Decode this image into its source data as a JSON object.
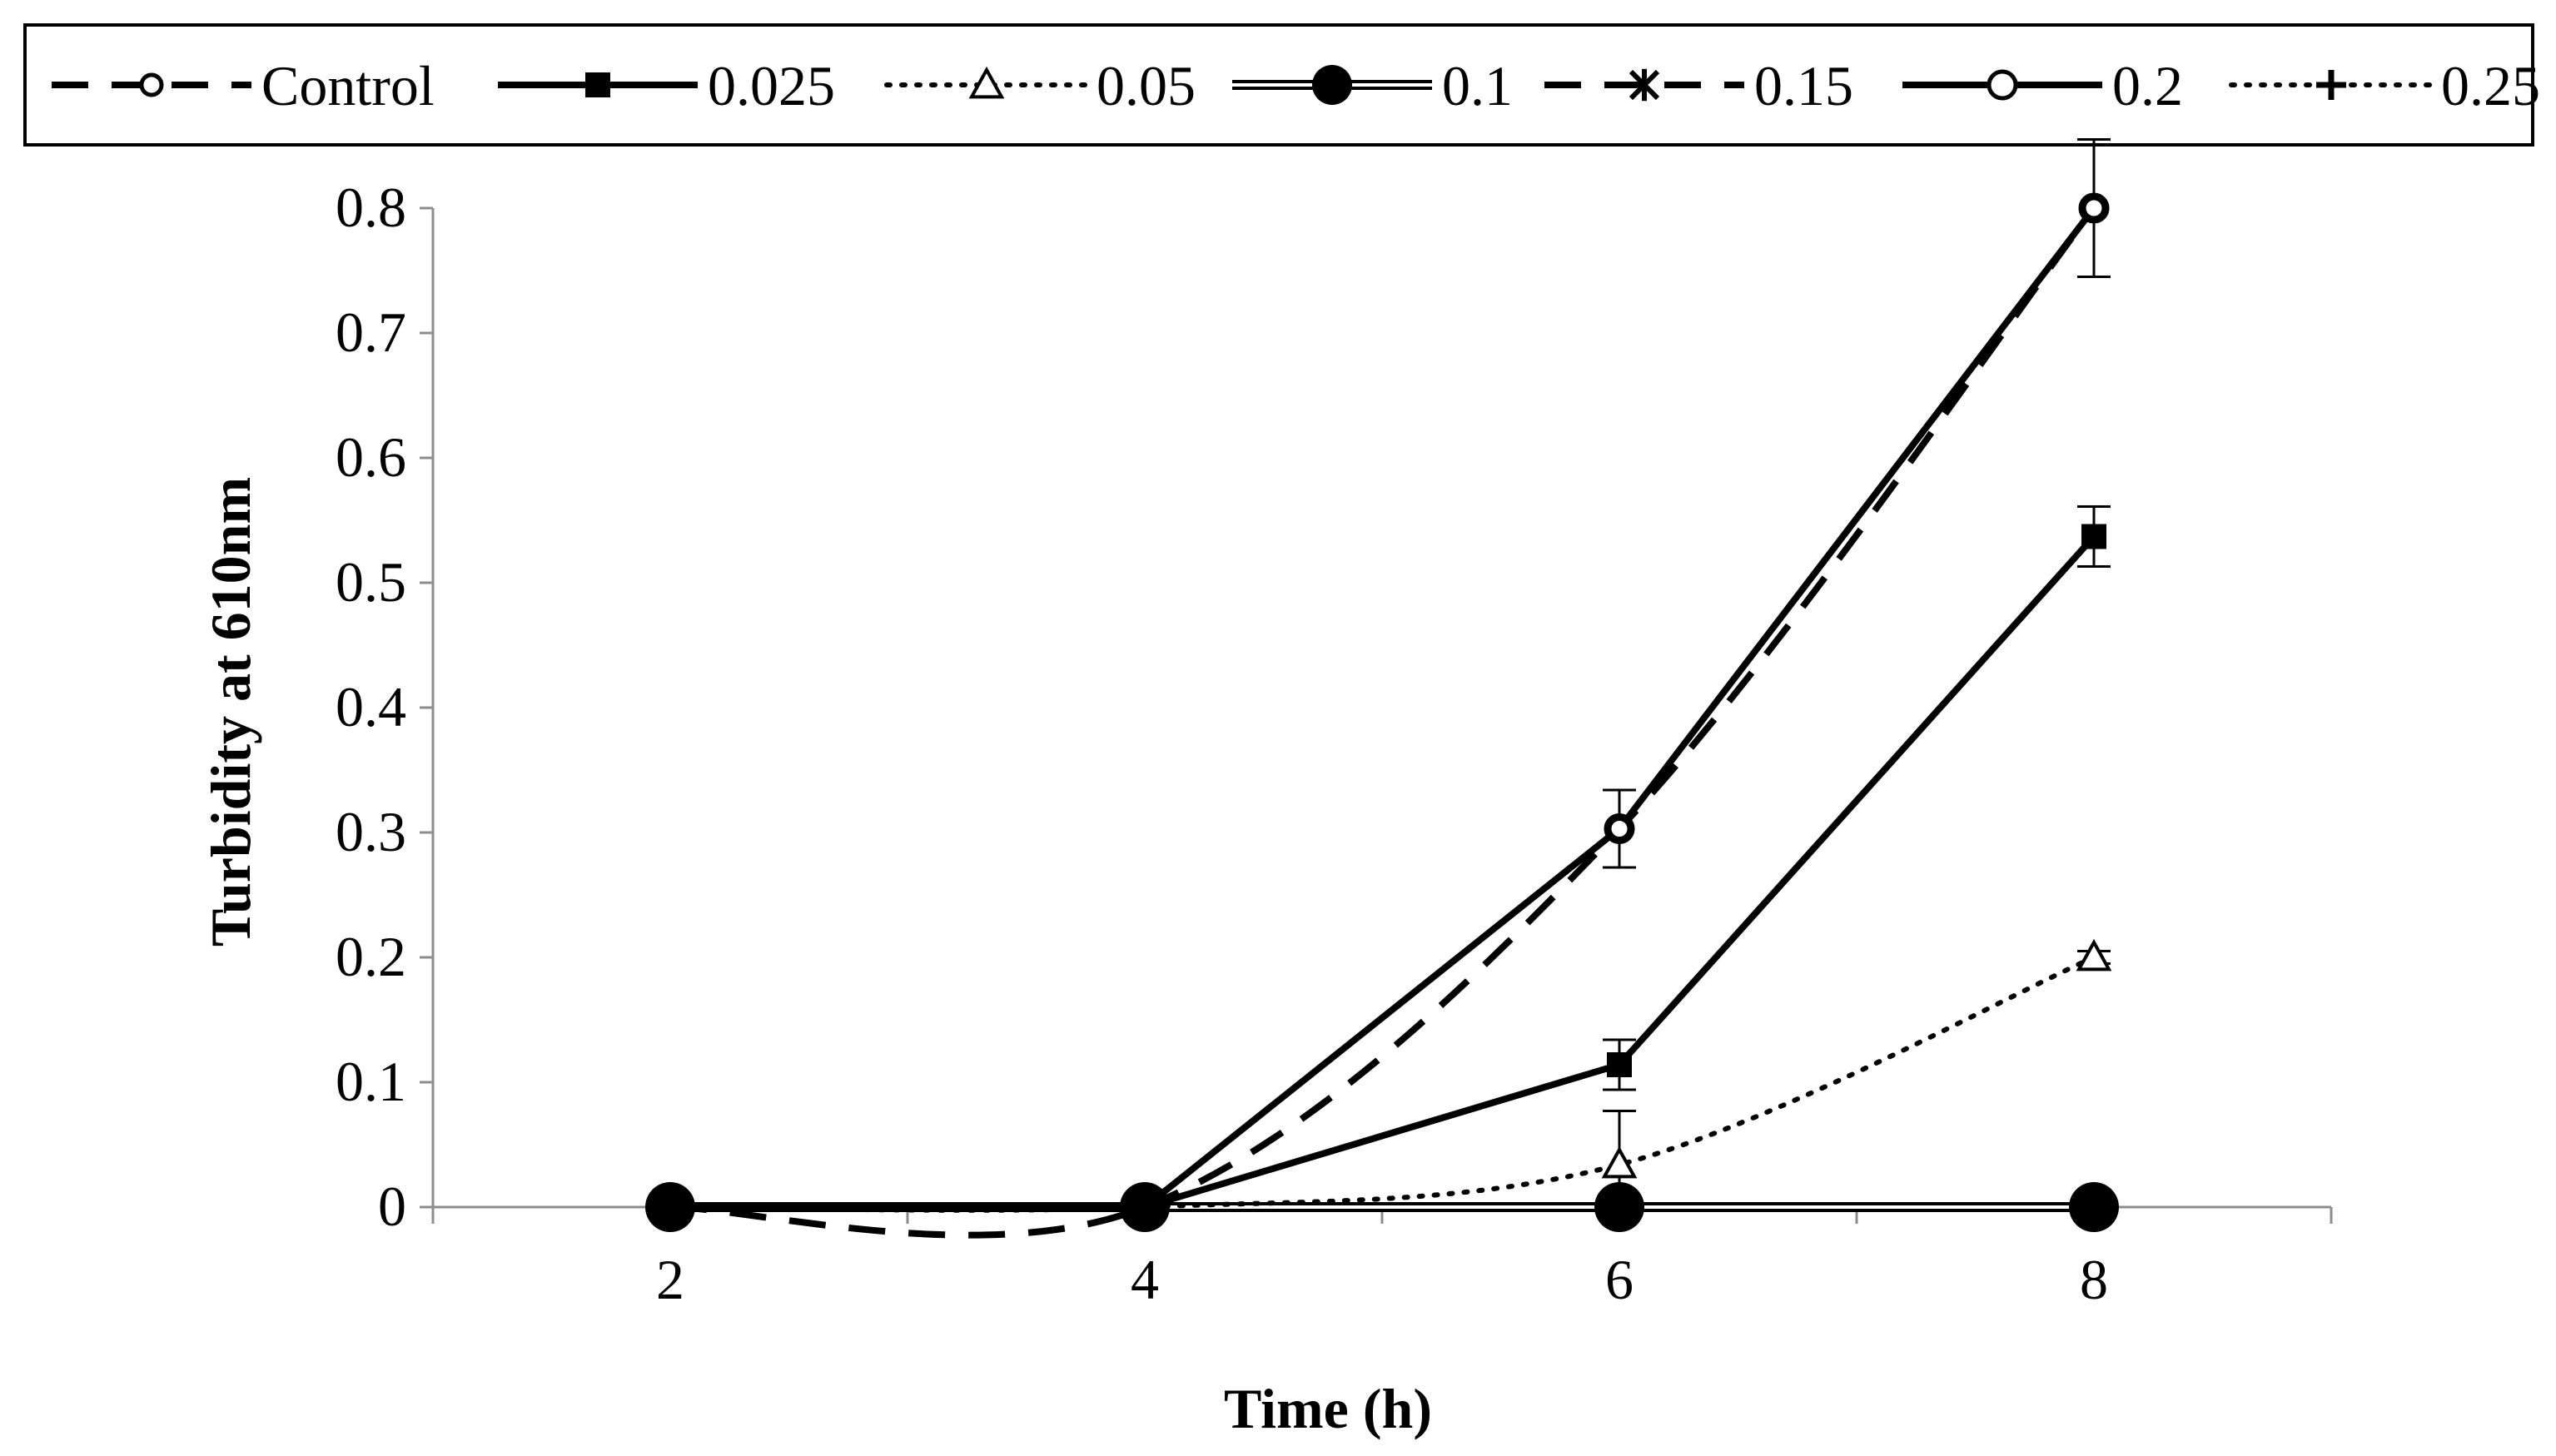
{
  "chart_data": {
    "type": "line",
    "title": "",
    "xlabel": "Time (h)",
    "ylabel": "Turbidity at 610nm",
    "x": [
      2,
      4,
      6,
      8
    ],
    "x_ticks": [
      "2",
      "4",
      "6",
      "8"
    ],
    "xlim": [
      1,
      9
    ],
    "ylim": [
      0,
      0.8
    ],
    "y_ticks": [
      "0",
      "0.1",
      "0.2",
      "0.3",
      "0.4",
      "0.5",
      "0.6",
      "0.7",
      "0.8"
    ],
    "grid": false,
    "legend_position": "top",
    "series": [
      {
        "name": "Control",
        "values": [
          0,
          0,
          0.303,
          0.8
        ],
        "errors": [
          0,
          0,
          0.031,
          0.055
        ],
        "line": "dashed",
        "marker": "open-circle-small",
        "smooth": true
      },
      {
        "name": "0.025",
        "values": [
          0,
          0,
          0.114,
          0.537
        ],
        "errors": [
          0,
          0,
          0.02,
          0.024
        ],
        "line": "solid",
        "marker": "filled-square",
        "smooth": false
      },
      {
        "name": "0.05",
        "values": [
          0,
          0,
          0.034,
          0.2
        ],
        "errors": [
          0,
          0,
          0.043,
          0.005
        ],
        "line": "dotted",
        "marker": "open-triangle",
        "smooth": true
      },
      {
        "name": "0.1",
        "values": [
          0,
          0,
          0,
          0
        ],
        "errors": [
          0,
          0,
          0,
          0
        ],
        "line": "double",
        "marker": "filled-circle",
        "smooth": false
      },
      {
        "name": "0.15",
        "values": [
          0,
          0,
          0,
          0
        ],
        "errors": [
          0,
          0,
          0,
          0
        ],
        "line": "dashed",
        "marker": "star",
        "smooth": false
      },
      {
        "name": "0.2",
        "values": [
          0,
          0,
          0.303,
          0.8
        ],
        "errors": [
          0,
          0,
          0,
          0
        ],
        "line": "solid",
        "marker": "open-circle",
        "smooth": false
      },
      {
        "name": "0.25",
        "values": [
          0,
          0,
          0,
          0
        ],
        "errors": [
          0,
          0,
          0,
          0
        ],
        "line": "dotted",
        "marker": "plus",
        "smooth": false
      }
    ]
  }
}
